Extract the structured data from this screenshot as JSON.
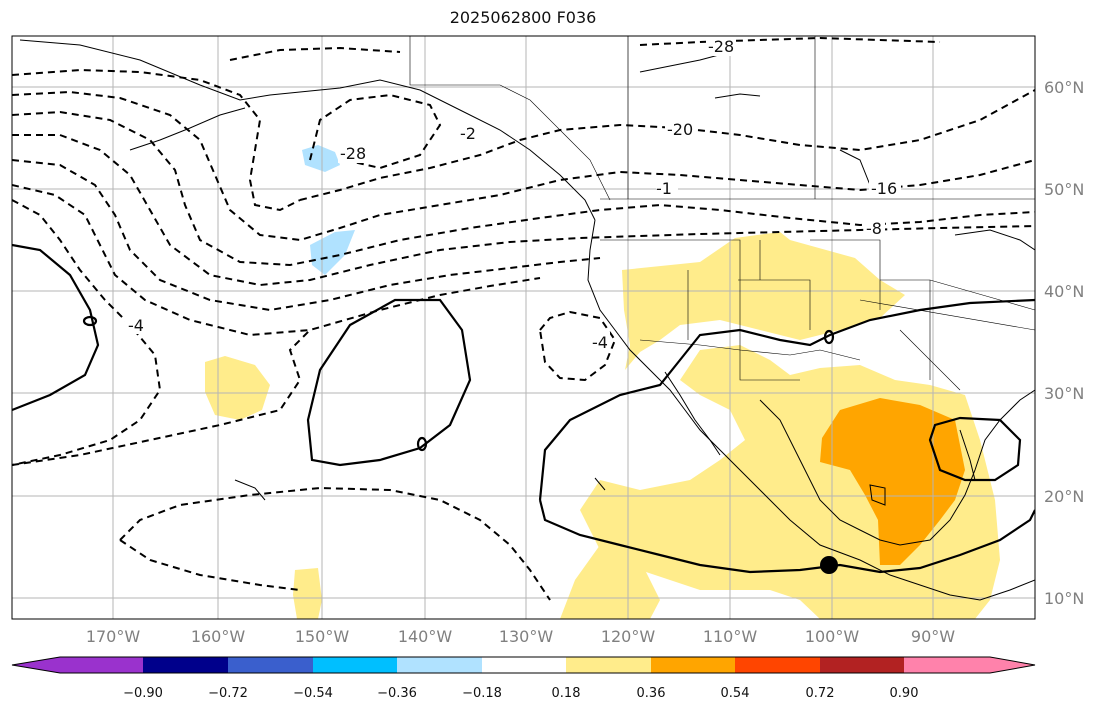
{
  "title": "2025062800 F036",
  "map": {
    "lon_range": [
      -180,
      -80
    ],
    "lat_range": [
      8,
      65
    ],
    "lon_labels": [
      "170°W",
      "160°W",
      "150°W",
      "140°W",
      "130°W",
      "120°W",
      "110°W",
      "100°W",
      "90°W"
    ],
    "lat_labels": [
      "60°N",
      "50°N",
      "40°N",
      "30°N",
      "20°N",
      "10°N"
    ],
    "contour_labels": [
      "-28",
      "-28",
      "-20",
      "-16",
      "-8",
      "-4",
      "-4",
      "-2",
      "-1",
      "0",
      "0",
      "0"
    ],
    "colorbar": {
      "ticks": [
        "−0.90",
        "−0.72",
        "−0.54",
        "−0.36",
        "−0.18",
        "0.18",
        "0.36",
        "0.54",
        "0.72",
        "0.90"
      ],
      "colors": [
        "#9a32cd",
        "#00008b",
        "#3a5fcd",
        "#00bfff",
        "#b0e2ff",
        "#ffffff",
        "#ffec8b",
        "#ffa500",
        "#ff4500",
        "#b22222",
        "#ff82ab"
      ]
    },
    "shading_colors": {
      "light_positive": "#ffec8b",
      "strong_positive": "#ffa500",
      "light_negative": "#b0e2ff"
    },
    "marker": {
      "lon": -100,
      "lat": 13,
      "label": ""
    }
  }
}
